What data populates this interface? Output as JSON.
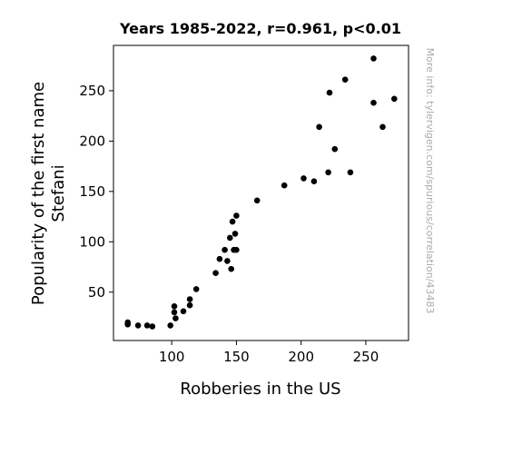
{
  "chart_data": {
    "type": "scatter",
    "title": "Years 1985-2022, r=0.961, p<0.01",
    "xlabel": "Robberies in the US",
    "ylabel": [
      "Popularity of the first name",
      "Stefani"
    ],
    "side_note": "More info: tylervigen.com/spurious/correlation/43483",
    "xlim": [
      55,
      283
    ],
    "ylim": [
      2,
      295
    ],
    "xticks": [
      100,
      150,
      200,
      250
    ],
    "yticks": [
      50,
      100,
      150,
      200,
      250
    ],
    "grid": false,
    "marker_color": "#000000",
    "points": [
      {
        "x": 66,
        "y": 20
      },
      {
        "x": 66,
        "y": 18
      },
      {
        "x": 74,
        "y": 17
      },
      {
        "x": 81,
        "y": 17
      },
      {
        "x": 85,
        "y": 16
      },
      {
        "x": 99,
        "y": 17
      },
      {
        "x": 102,
        "y": 36
      },
      {
        "x": 102,
        "y": 30
      },
      {
        "x": 103,
        "y": 24
      },
      {
        "x": 109,
        "y": 31
      },
      {
        "x": 114,
        "y": 43
      },
      {
        "x": 114,
        "y": 37
      },
      {
        "x": 119,
        "y": 53
      },
      {
        "x": 134,
        "y": 69
      },
      {
        "x": 137,
        "y": 83
      },
      {
        "x": 141,
        "y": 92
      },
      {
        "x": 143,
        "y": 81
      },
      {
        "x": 145,
        "y": 104
      },
      {
        "x": 146,
        "y": 73
      },
      {
        "x": 147,
        "y": 120
      },
      {
        "x": 148,
        "y": 92
      },
      {
        "x": 149,
        "y": 108
      },
      {
        "x": 150,
        "y": 126
      },
      {
        "x": 150,
        "y": 92
      },
      {
        "x": 166,
        "y": 141
      },
      {
        "x": 187,
        "y": 156
      },
      {
        "x": 202,
        "y": 163
      },
      {
        "x": 210,
        "y": 160
      },
      {
        "x": 214,
        "y": 214
      },
      {
        "x": 221,
        "y": 169
      },
      {
        "x": 222,
        "y": 248
      },
      {
        "x": 226,
        "y": 192
      },
      {
        "x": 234,
        "y": 261
      },
      {
        "x": 238,
        "y": 169
      },
      {
        "x": 256,
        "y": 282
      },
      {
        "x": 256,
        "y": 238
      },
      {
        "x": 263,
        "y": 214
      },
      {
        "x": 272,
        "y": 242
      }
    ]
  }
}
